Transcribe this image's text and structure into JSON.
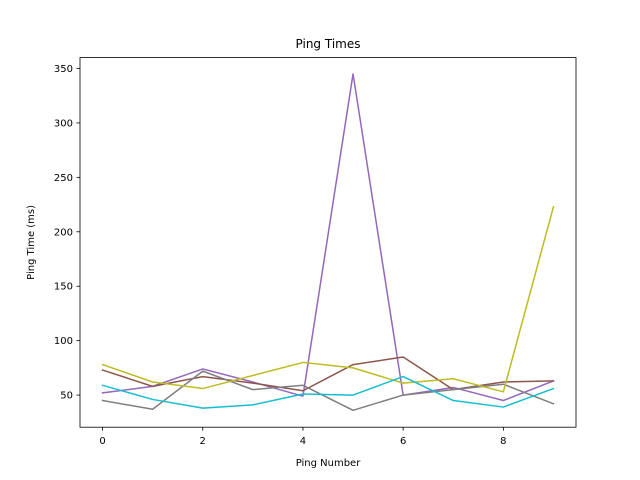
{
  "chart_data": {
    "type": "line",
    "title": "Ping Times",
    "xlabel": "Ping Number",
    "ylabel": "Ping Time (ms)",
    "xlim": [
      -0.45,
      9.45
    ],
    "ylim": [
      20.5,
      360
    ],
    "x_ticks": [
      0,
      2,
      4,
      6,
      8
    ],
    "y_ticks": [
      50,
      100,
      150,
      200,
      250,
      300,
      350
    ],
    "grid": false,
    "x": [
      0,
      1,
      2,
      3,
      4,
      5,
      6,
      7,
      8,
      9
    ],
    "series": [
      {
        "color": "#9467bd",
        "values": [
          52,
          58,
          74,
          62,
          49,
          345,
          50,
          57,
          45,
          63
        ]
      },
      {
        "color": "#8c564b",
        "values": [
          73,
          58,
          67,
          61,
          54,
          78,
          85,
          55,
          62,
          63
        ]
      },
      {
        "color": "#7f7f7f",
        "values": [
          45,
          37,
          72,
          55,
          59,
          36,
          50,
          55,
          60,
          42
        ]
      },
      {
        "color": "#bcbd22",
        "values": [
          78,
          62,
          56,
          68,
          80,
          75,
          61,
          65,
          53,
          223
        ]
      },
      {
        "color": "#17becf",
        "values": [
          59,
          46,
          38,
          41,
          51,
          50,
          67,
          45,
          39,
          56
        ]
      }
    ]
  }
}
